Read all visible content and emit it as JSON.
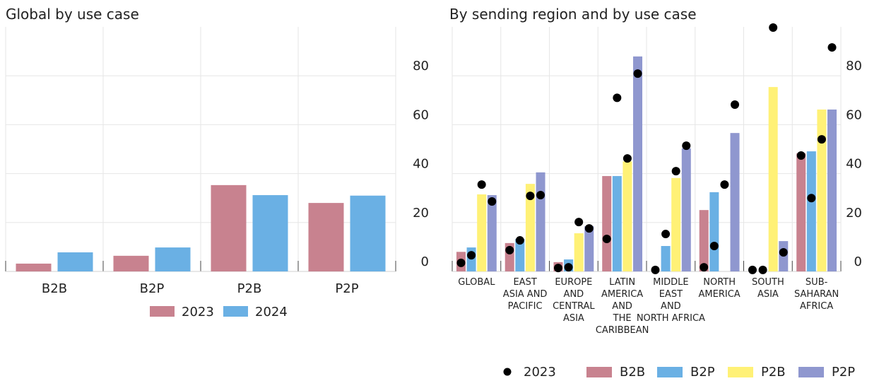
{
  "chart_data": [
    {
      "type": "bar",
      "title": "Global by use case",
      "categories": [
        "B2B",
        "B2P",
        "P2B",
        "P2P"
      ],
      "series": [
        {
          "name": "2023",
          "color": "#c8828f",
          "values": [
            3.2,
            6.4,
            35.3,
            28
          ]
        },
        {
          "name": "2024",
          "color": "#6ab0e4",
          "values": [
            7.8,
            9.8,
            31.2,
            31
          ]
        }
      ],
      "ylim": [
        0,
        100
      ],
      "yticks": [
        0,
        20,
        40,
        60,
        80
      ],
      "grid": true
    },
    {
      "type": "bar",
      "title": "By sending region and by use case",
      "categories": [
        "GLOBAL",
        "EAST\nASIA AND\nPACIFIC",
        "EUROPE\nAND\nCENTRAL\nASIA",
        "LATIN\nAMERICA\nAND\nTHE\nCARIBBEAN",
        "MIDDLE\nEAST\nAND\nNORTH AFRICA",
        "NORTH\nAMERICA",
        "SOUTH\nASIA",
        "SUB-\nSAHARAN\nAFRICA"
      ],
      "dot_series": {
        "name": "2023",
        "color": "#000000"
      },
      "series": [
        {
          "name": "B2B",
          "color": "#c8828f",
          "values": [
            8,
            11.6,
            3.8,
            39,
            0,
            25.1,
            0,
            48.3
          ],
          "dots": [
            3.5,
            8.7,
            1.4,
            13.3,
            0.6,
            1.7,
            0.6,
            47.4
          ]
        },
        {
          "name": "B2P",
          "color": "#6ab0e4",
          "values": [
            9.8,
            13.3,
            4.9,
            39,
            10.4,
            32.4,
            0,
            49.1
          ],
          "dots": [
            6.6,
            12.7,
            1.7,
            71,
            15.3,
            10.4,
            0.6,
            30
          ]
        },
        {
          "name": "P2B",
          "color": "#fff176",
          "values": [
            31.5,
            35.8,
            15.6,
            45,
            38.2,
            0,
            75.4,
            66.2
          ],
          "dots": [
            35.5,
            30.9,
            20.2,
            46.2,
            41,
            35.5,
            99.7,
            54
          ]
        },
        {
          "name": "P2P",
          "color": "#8f97cf",
          "values": [
            31.2,
            40.5,
            18.5,
            87.9,
            50.3,
            56.6,
            12.4,
            66.2
          ],
          "dots": [
            28.6,
            31.2,
            17.6,
            80.9,
            51.4,
            68.2,
            7.8,
            91.6
          ]
        }
      ],
      "ylim": [
        0,
        100
      ],
      "yticks": [
        0,
        20,
        40,
        60,
        80
      ],
      "grid": true
    }
  ]
}
